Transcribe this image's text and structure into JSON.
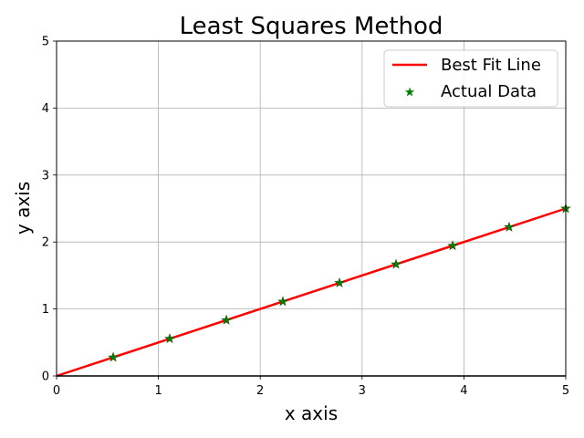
{
  "chart_data": {
    "type": "scatter",
    "title": "Least Squares Method",
    "xlabel": "x axis",
    "ylabel": "y axis",
    "xlim": [
      0,
      5
    ],
    "ylim": [
      0,
      5
    ],
    "x_ticks": [
      "0",
      "1",
      "2",
      "3",
      "4",
      "5"
    ],
    "y_ticks": [
      "0",
      "1",
      "2",
      "3",
      "4",
      "5"
    ],
    "grid": true,
    "legend_position": "top-right",
    "series": [
      {
        "name": "Best Fit Line",
        "kind": "line",
        "color": "#ff0000",
        "slope": 0.5,
        "intercept": 0,
        "x": [
          0,
          5
        ],
        "y": [
          0,
          2.5
        ]
      },
      {
        "name": "Actual Data",
        "kind": "scatter",
        "marker": "star",
        "color": "#008000",
        "x": [
          0.556,
          1.111,
          1.667,
          2.222,
          2.778,
          3.333,
          3.889,
          4.444,
          5.0
        ],
        "y": [
          0.278,
          0.556,
          0.833,
          1.111,
          1.389,
          1.667,
          1.944,
          2.222,
          2.5
        ]
      }
    ]
  }
}
